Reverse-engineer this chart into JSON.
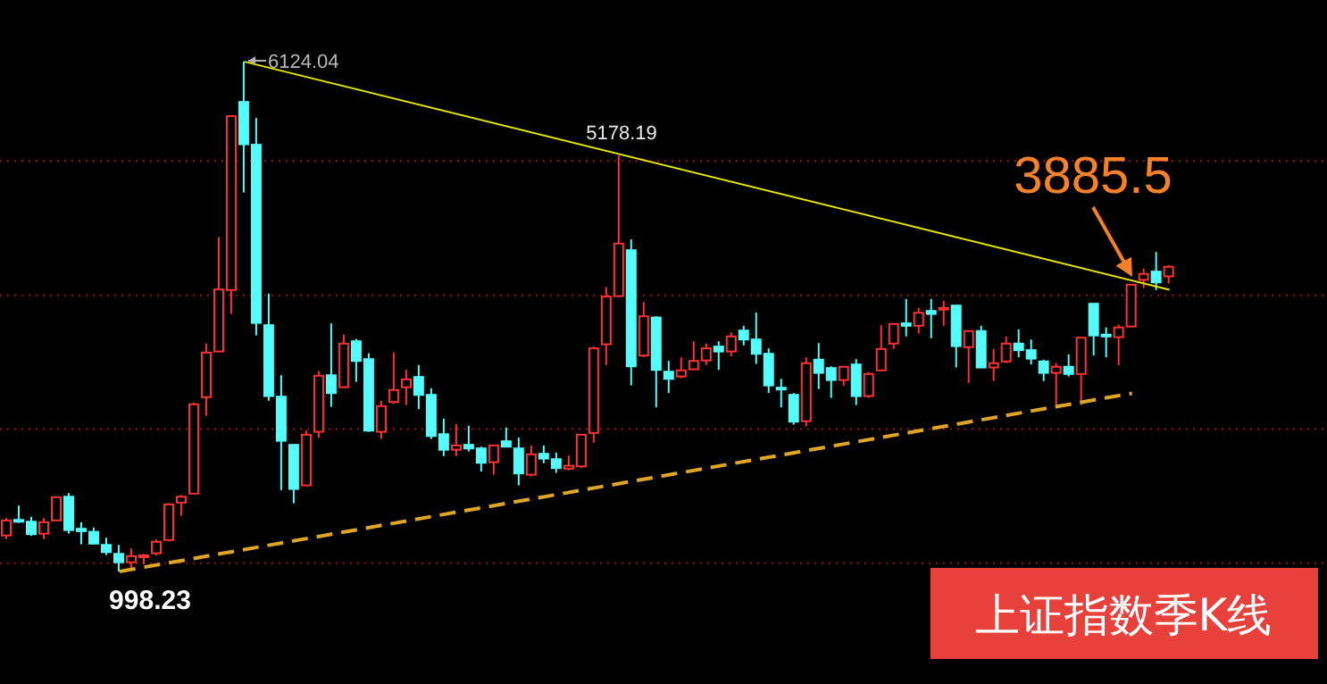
{
  "chart_data": {
    "type": "candlestick",
    "title": "上证指数季K线",
    "categories": [
      null,
      null,
      null,
      null,
      null,
      null,
      null,
      null,
      null,
      null,
      null,
      null,
      null,
      null,
      null,
      null,
      null,
      null,
      null,
      null,
      null,
      null,
      null,
      null,
      null,
      null,
      null,
      null,
      null,
      null,
      null,
      null,
      null,
      null,
      null,
      null,
      null,
      null,
      null,
      null,
      null,
      null,
      null,
      null,
      null,
      null,
      null,
      null,
      null,
      null,
      null,
      null,
      null,
      null,
      null,
      null,
      null,
      null,
      null,
      null,
      null,
      null,
      null,
      null,
      null,
      null,
      null,
      null,
      null,
      null,
      null,
      null,
      null,
      null,
      null,
      null,
      null,
      null,
      null,
      null,
      null,
      null,
      null,
      null,
      null,
      null,
      null,
      null,
      null,
      null,
      null,
      null,
      null,
      null
    ],
    "ohlc": [
      [
        1362,
        1536,
        1326,
        1513
      ],
      [
        1518,
        1662,
        1488,
        1500
      ],
      [
        1500,
        1549,
        1357,
        1375
      ],
      [
        1380,
        1536,
        1326,
        1495
      ],
      [
        1513,
        1757,
        1513,
        1746
      ],
      [
        1751,
        1787,
        1380,
        1416
      ],
      [
        1429,
        1495,
        1273,
        1405
      ],
      [
        1398,
        1441,
        1273,
        1280
      ],
      [
        1267,
        1339,
        1165,
        1195
      ],
      [
        1177,
        1267,
        998.23,
        1093
      ],
      [
        1093,
        1231,
        1021,
        1154
      ],
      [
        1150,
        1177,
        1075,
        1162
      ],
      [
        1183,
        1321,
        1159,
        1298
      ],
      [
        1316,
        1685,
        1303,
        1674
      ],
      [
        1692,
        1769,
        1560,
        1751
      ],
      [
        1782,
        2697,
        1782,
        2679
      ],
      [
        2751,
        3289,
        2564,
        3199
      ],
      [
        3210,
        4358,
        3210,
        3833
      ],
      [
        3827,
        5585,
        3587,
        5573
      ],
      [
        5716,
        6124.04,
        4807,
        5291
      ],
      [
        5286,
        5555,
        3371,
        3497
      ],
      [
        3474,
        3791,
        2715,
        2762
      ],
      [
        2756,
        2971,
        1818,
        2313
      ],
      [
        2272,
        2272,
        1685,
        1829
      ],
      [
        1865,
        2415,
        1865,
        2374
      ],
      [
        2403,
        3013,
        2344,
        2966
      ],
      [
        2971,
        3492,
        2654,
        2792
      ],
      [
        2851,
        3379,
        2851,
        3289
      ],
      [
        3312,
        3336,
        2905,
        3115
      ],
      [
        3133,
        3192,
        2403,
        2415
      ],
      [
        2403,
        2715,
        2331,
        2661
      ],
      [
        2702,
        3199,
        2684,
        2823
      ],
      [
        2851,
        3025,
        2672,
        2930
      ],
      [
        2954,
        3074,
        2631,
        2774
      ],
      [
        2774,
        2840,
        2331,
        2361
      ],
      [
        2379,
        2535,
        2159,
        2223
      ],
      [
        2223,
        2482,
        2159,
        2266
      ],
      [
        2272,
        2464,
        2205,
        2236
      ],
      [
        2236,
        2254,
        2003,
        2092
      ],
      [
        2098,
        2266,
        1972,
        2266
      ],
      [
        2308,
        2446,
        2249,
        2254
      ],
      [
        2236,
        2344,
        1865,
        1985
      ],
      [
        1972,
        2266,
        1954,
        2177
      ],
      [
        2182,
        2266,
        2087,
        2134
      ],
      [
        2128,
        2195,
        1990,
        2039
      ],
      [
        2033,
        2164,
        2015,
        2062
      ],
      [
        2056,
        2374,
        2039,
        2374
      ],
      [
        2392,
        3259,
        2295,
        3241
      ],
      [
        3282,
        3856,
        3074,
        3761
      ],
      [
        3766,
        5178.19,
        3766,
        4294
      ],
      [
        4227,
        4335,
        2869,
        3061
      ],
      [
        3169,
        3707,
        3151,
        3563
      ],
      [
        3551,
        3563,
        2648,
        3025
      ],
      [
        3007,
        3115,
        2792,
        2935
      ],
      [
        2959,
        3151,
        2941,
        3020
      ],
      [
        3031,
        3312,
        3031,
        3115
      ],
      [
        3120,
        3289,
        3074,
        3241
      ],
      [
        3259,
        3312,
        3025,
        3210
      ],
      [
        3210,
        3402,
        3163,
        3361
      ],
      [
        3420,
        3468,
        3271,
        3330
      ],
      [
        3330,
        3600,
        3085,
        3187
      ],
      [
        3187,
        3241,
        2792,
        2869
      ],
      [
        2846,
        2935,
        2648,
        2828
      ],
      [
        2774,
        2792,
        2475,
        2505
      ],
      [
        2510,
        3151,
        2457,
        3092
      ],
      [
        3127,
        3294,
        2833,
        2995
      ],
      [
        3043,
        3061,
        2744,
        2923
      ],
      [
        2923,
        3056,
        2864,
        3056
      ],
      [
        3079,
        3133,
        2672,
        2762
      ],
      [
        2762,
        3002,
        2744,
        2984
      ],
      [
        3020,
        3474,
        3020,
        3235
      ],
      [
        3289,
        3486,
        3235,
        3486
      ],
      [
        3492,
        3737,
        3361,
        3468
      ],
      [
        3468,
        3648,
        3390,
        3599
      ],
      [
        3617,
        3737,
        3343,
        3587
      ],
      [
        3630,
        3720,
        3468,
        3648
      ],
      [
        3671,
        3671,
        3049,
        3264
      ],
      [
        3253,
        3415,
        2894,
        3415
      ],
      [
        3415,
        3468,
        3049,
        3049
      ],
      [
        3049,
        3235,
        2912,
        3092
      ],
      [
        3110,
        3361,
        3092,
        3289
      ],
      [
        3289,
        3432,
        3151,
        3223
      ],
      [
        3223,
        3330,
        3079,
        3138
      ],
      [
        3110,
        3127,
        2912,
        2995
      ],
      [
        2995,
        3092,
        2672,
        3056
      ],
      [
        3056,
        3181,
        2959,
        2984
      ],
      [
        2984,
        3348,
        2672,
        3348
      ],
      [
        3689,
        3689,
        3169,
        3371
      ],
      [
        3379,
        3451,
        3151,
        3366
      ],
      [
        3354,
        3479,
        3074,
        3451
      ],
      [
        3461,
        3885.5,
        3461,
        3880
      ],
      [
        3929,
        4042,
        3845,
        3989
      ],
      [
        4012,
        4209,
        3827,
        3904
      ],
      [
        3964,
        4078,
        3892,
        4060
      ]
    ],
    "colors": [
      "#ff3232",
      "#54fcfc",
      "#54fcfc",
      "#ff3232",
      "#ff3232",
      "#54fcfc",
      "#54fcfc",
      "#54fcfc",
      "#54fcfc",
      "#54fcfc",
      "#ff3232",
      "#ff3232",
      "#ff3232",
      "#ff3232",
      "#ff3232",
      "#ff3232",
      "#ff3232",
      "#ff3232",
      "#ff3232",
      "#54fcfc",
      "#54fcfc",
      "#54fcfc",
      "#54fcfc",
      "#54fcfc",
      "#ff3232",
      "#ff3232",
      "#54fcfc",
      "#ff3232",
      "#54fcfc",
      "#54fcfc",
      "#ff3232",
      "#ff3232",
      "#ff3232",
      "#54fcfc",
      "#54fcfc",
      "#54fcfc",
      "#ff3232",
      "#54fcfc",
      "#54fcfc",
      "#ff3232",
      "#54fcfc",
      "#54fcfc",
      "#ff3232",
      "#54fcfc",
      "#54fcfc",
      "#ff3232",
      "#ff3232",
      "#ff3232",
      "#ff3232",
      "#ff3232",
      "#54fcfc",
      "#ff3232",
      "#54fcfc",
      "#54fcfc",
      "#ff3232",
      "#ff3232",
      "#ff3232",
      "#54fcfc",
      "#ff3232",
      "#54fcfc",
      "#54fcfc",
      "#54fcfc",
      "#54fcfc",
      "#54fcfc",
      "#ff3232",
      "#54fcfc",
      "#54fcfc",
      "#ff3232",
      "#54fcfc",
      "#ff3232",
      "#ff3232",
      "#ff3232",
      "#54fcfc",
      "#ff3232",
      "#54fcfc",
      "#ff3232",
      "#54fcfc",
      "#ff3232",
      "#54fcfc",
      "#ff3232",
      "#ff3232",
      "#54fcfc",
      "#54fcfc",
      "#54fcfc",
      "#ff3232",
      "#54fcfc",
      "#ff3232",
      "#54fcfc",
      "#54fcfc",
      "#ff3232",
      "#ff3232",
      "#ff3232",
      "#54fcfc",
      "#ff3232"
    ],
    "series": [
      {
        "type": "line",
        "color": "#e6e600",
        "line_style": "solid",
        "values": [
          null,
          null,
          null,
          null,
          null,
          null,
          null,
          null,
          null,
          null,
          null,
          null,
          null,
          null,
          null,
          null,
          null,
          null,
          null,
          6120,
          null,
          null,
          null,
          null,
          null,
          null,
          null,
          null,
          null,
          null,
          null,
          null,
          null,
          null,
          null,
          null,
          null,
          null,
          null,
          null,
          null,
          null,
          null,
          null,
          null,
          null,
          null,
          null,
          null,
          null,
          null,
          null,
          null,
          null,
          null,
          null,
          null,
          null,
          null,
          null,
          null,
          null,
          null,
          null,
          null,
          null,
          null,
          null,
          null,
          null,
          null,
          null,
          null,
          null,
          null,
          null,
          null,
          null,
          null,
          null,
          null,
          null,
          null,
          null,
          null,
          null,
          null,
          null,
          null,
          null,
          null,
          null,
          null,
          3830
        ]
      },
      {
        "type": "line",
        "color": "#e0a526",
        "line_style": "dashed",
        "values": [
          null,
          null,
          null,
          null,
          null,
          null,
          null,
          null,
          null,
          1000,
          null,
          null,
          null,
          null,
          null,
          null,
          null,
          null,
          null,
          null,
          null,
          null,
          null,
          null,
          null,
          null,
          null,
          null,
          null,
          null,
          null,
          null,
          null,
          null,
          null,
          null,
          null,
          null,
          null,
          null,
          null,
          null,
          null,
          null,
          null,
          null,
          null,
          null,
          null,
          null,
          null,
          null,
          null,
          null,
          null,
          null,
          null,
          null,
          null,
          null,
          null,
          null,
          null,
          null,
          null,
          null,
          null,
          null,
          null,
          null,
          null,
          null,
          null,
          null,
          null,
          null,
          null,
          null,
          null,
          null,
          null,
          null,
          null,
          null,
          null,
          null,
          null,
          null,
          null,
          null,
          2790,
          null,
          null,
          null
        ]
      }
    ],
    "ylim": [
      -130,
      6740
    ],
    "yticks": [
      {
        "value": 1082,
        "label": null
      },
      {
        "value": 2430,
        "label": null
      },
      {
        "value": 3773,
        "label": null
      },
      {
        "value": 5124,
        "label": null
      }
    ],
    "grid": "y",
    "tick_labels": false,
    "annotations": [
      "6124.04",
      "5178.19",
      "998.23",
      "3885.5"
    ]
  }
}
